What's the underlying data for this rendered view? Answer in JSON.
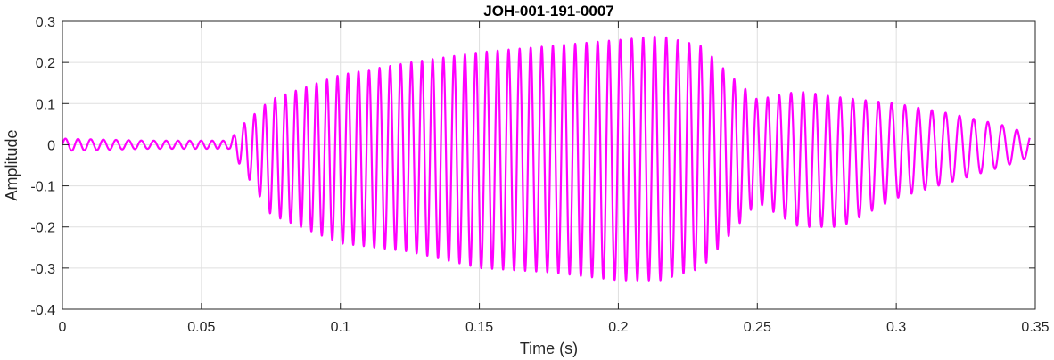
{
  "chart_data": {
    "type": "line",
    "title": "JOH-001-191-0007",
    "xlabel": "Time (s)",
    "ylabel": "Amplitude",
    "xlim": [
      0,
      0.35
    ],
    "ylim": [
      -0.4,
      0.3
    ],
    "xticks": [
      0,
      0.05,
      0.1,
      0.15,
      0.2,
      0.25,
      0.3,
      0.35
    ],
    "xtick_labels": [
      "0",
      "0.05",
      "0.1",
      "0.15",
      "0.2",
      "0.25",
      "0.3",
      "0.35"
    ],
    "yticks": [
      -0.4,
      -0.3,
      -0.2,
      -0.1,
      0,
      0.1,
      0.2,
      0.3
    ],
    "ytick_labels": [
      "-0.4",
      "-0.3",
      "-0.2",
      "-0.1",
      "0",
      "0.1",
      "0.2",
      "0.3"
    ],
    "grid": true,
    "color": "#ff00ff",
    "series": [
      {
        "waveform": "oscillating",
        "x": [
          0,
          0.03,
          0.06,
          0.065,
          0.075,
          0.1,
          0.125,
          0.15,
          0.175,
          0.2,
          0.215,
          0.23,
          0.24,
          0.25,
          0.265,
          0.28,
          0.3,
          0.32,
          0.34,
          0.348
        ],
        "upper_envelope": [
          0.015,
          0.01,
          0.01,
          0.05,
          0.11,
          0.17,
          0.2,
          0.225,
          0.24,
          0.255,
          0.265,
          0.24,
          0.17,
          0.11,
          0.13,
          0.115,
          0.1,
          0.075,
          0.045,
          0.025
        ],
        "lower_envelope": [
          -0.015,
          -0.01,
          -0.01,
          -0.06,
          -0.17,
          -0.24,
          -0.26,
          -0.3,
          -0.31,
          -0.33,
          -0.33,
          -0.3,
          -0.22,
          -0.14,
          -0.2,
          -0.2,
          -0.13,
          -0.09,
          -0.05,
          -0.03
        ],
        "frequency_hz": [
          220,
          220,
          260,
          270,
          270,
          265,
          262,
          255,
          250,
          245,
          240,
          245,
          250,
          250,
          228,
          222,
          210,
          200,
          190,
          190
        ]
      }
    ]
  }
}
